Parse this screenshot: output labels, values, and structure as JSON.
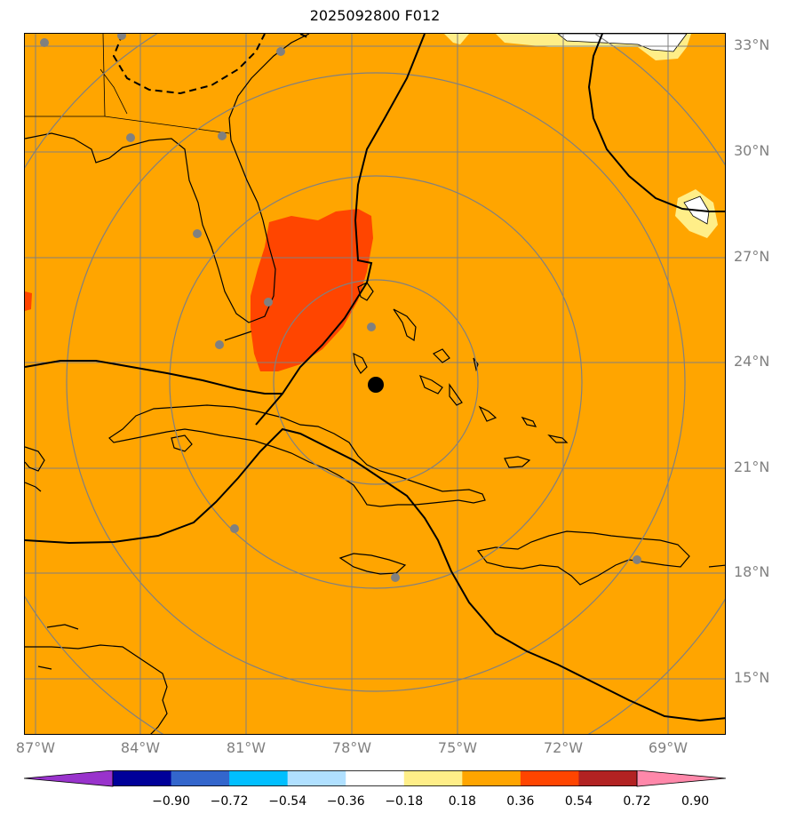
{
  "title": "2025092800 F012",
  "latitude_labels": [
    "33°N",
    "30°N",
    "27°N",
    "24°N",
    "21°N",
    "18°N",
    "15°N"
  ],
  "longitude_labels": [
    "87°W",
    "84°W",
    "81°W",
    "78°W",
    "75°W",
    "72°W",
    "69°W"
  ],
  "storm_center": {
    "lat": 23.4,
    "lon": -77.3
  },
  "colorbar": {
    "tick_labels": [
      "−0.90",
      "−0.72",
      "−0.54",
      "−0.36",
      "−0.18",
      "0.18",
      "0.36",
      "0.54",
      "0.72",
      "0.90"
    ],
    "colors": [
      "#9933cc",
      "#000099",
      "#3366cc",
      "#00bfff",
      "#b0e0ff",
      "#ffffff",
      "#ffee88",
      "#ffa500",
      "#ff4500",
      "#b22222",
      "#ff88aa"
    ]
  },
  "colors": {
    "background_field": "#ffa500",
    "high_field": "#ff4500",
    "light_field": "#ffee88",
    "range_rings": "#808080",
    "grid": "#808080",
    "contours": "#000000",
    "stations": "#808080"
  }
}
